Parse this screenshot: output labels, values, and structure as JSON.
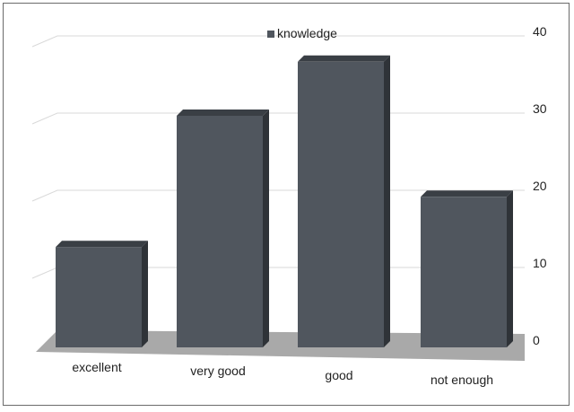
{
  "chart_data": {
    "type": "bar",
    "style": "3d",
    "categories": [
      "excellent",
      "very good",
      "good",
      "not enough"
    ],
    "series": [
      {
        "name": "knowledge",
        "values": [
          13,
          30,
          37,
          19.5
        ]
      }
    ],
    "ylim": [
      0,
      40
    ],
    "yticks": [
      0,
      10,
      20,
      30,
      40
    ],
    "y_axis_side": "right",
    "grid": true,
    "legend_position": "top",
    "colors": {
      "bar_front": "#50565e",
      "bar_top": "#3a3f45",
      "bar_side": "#2f3338",
      "floor": "#a9a9a9",
      "grid": "#d9d9d9"
    }
  }
}
